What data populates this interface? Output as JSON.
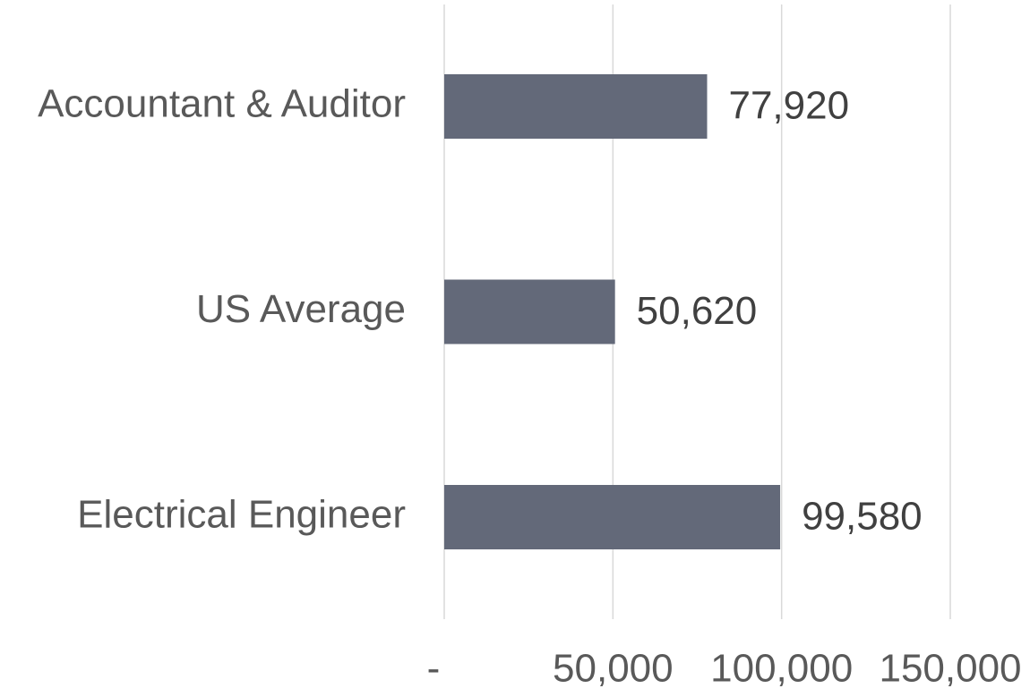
{
  "chart_data": {
    "type": "bar",
    "orientation": "horizontal",
    "categories": [
      "Accountant & Auditor",
      "US Average",
      "Electrical Engineer"
    ],
    "values": [
      77920,
      50620,
      99580
    ],
    "value_labels": [
      "77,920",
      "50,620",
      "99,580"
    ],
    "color": "#636979",
    "xlim": [
      0,
      150000
    ],
    "xticks": [
      {
        "value": 0,
        "label": "-"
      },
      {
        "value": 50000,
        "label": "50,000"
      },
      {
        "value": 100000,
        "label": "100,000"
      },
      {
        "value": 150000,
        "label": "150,000"
      }
    ],
    "grid": true
  }
}
